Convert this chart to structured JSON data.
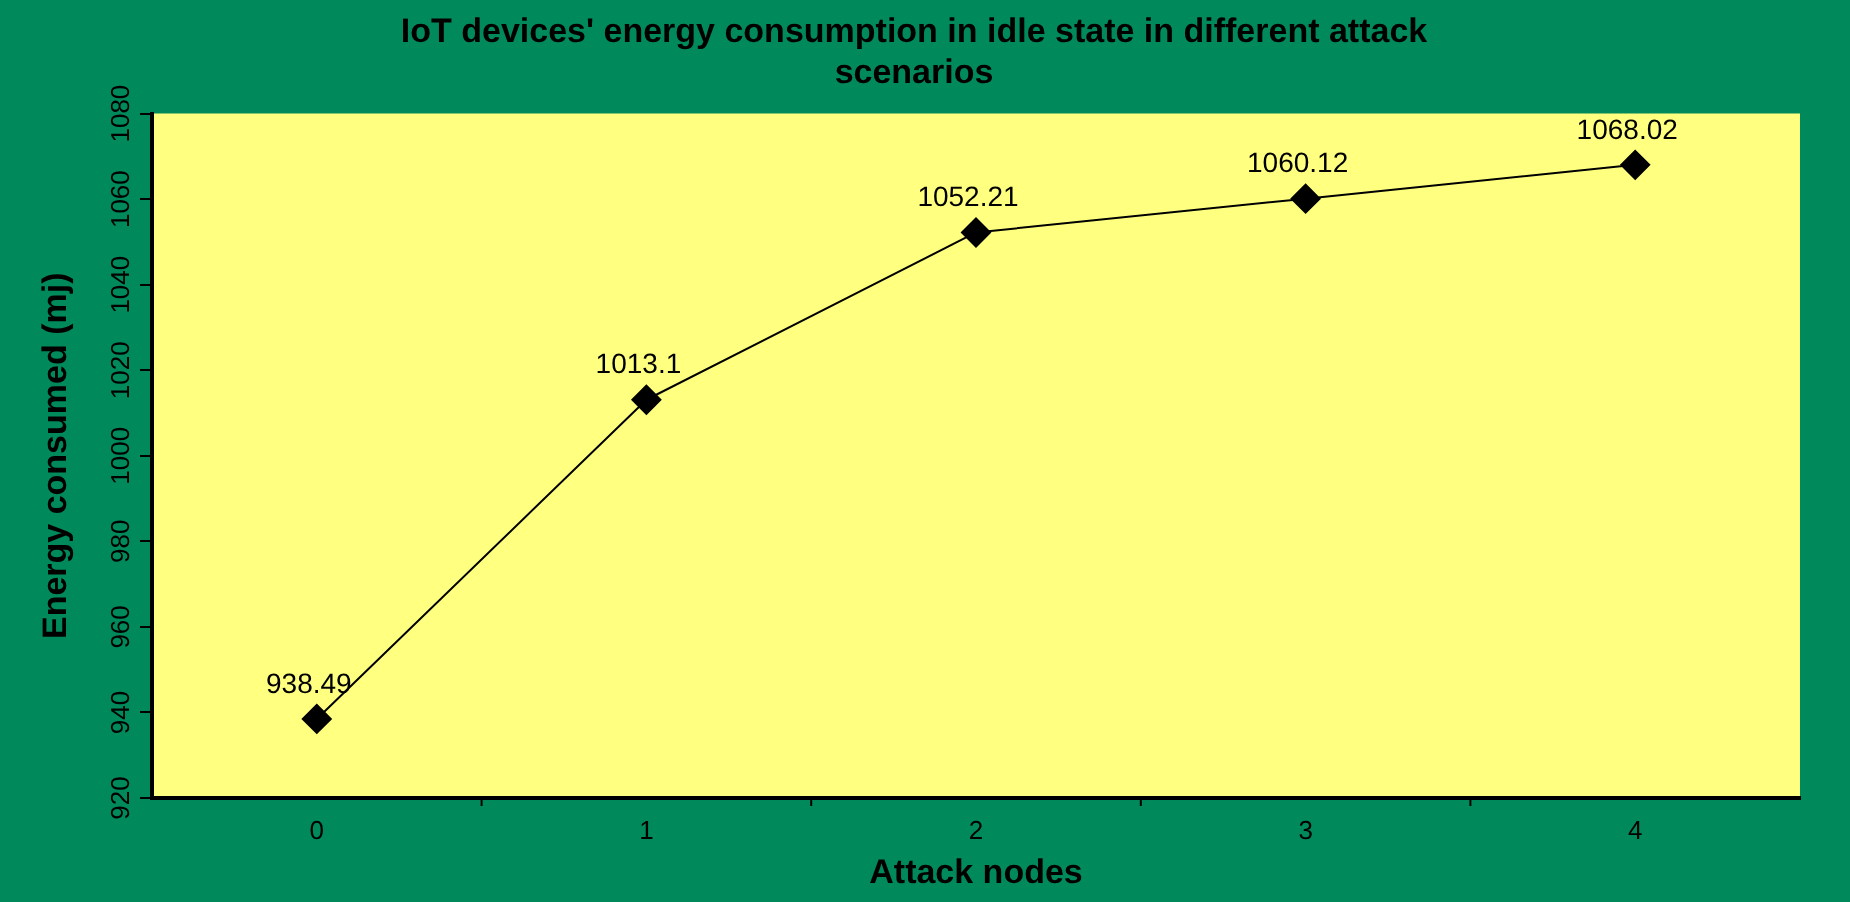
{
  "chart_data": {
    "type": "line",
    "title": "IoT devices' energy consumption in idle state in different attack scenarios",
    "xlabel": "Attack nodes",
    "ylabel": "Energy consumed (mj)",
    "x": [
      0,
      1,
      2,
      3,
      4
    ],
    "series": [
      {
        "color": "#000000",
        "values": [
          938.49,
          1013.1,
          1052.21,
          1060.12,
          1068.02
        ]
      }
    ],
    "xlim": [
      -0.5,
      4.5
    ],
    "xticks": [
      0,
      1,
      2,
      3,
      4
    ],
    "ylim": [
      920,
      1080
    ],
    "yticks": [
      920,
      940,
      960,
      980,
      1000,
      1020,
      1040,
      1060,
      1080
    ],
    "grid": false,
    "legend": false,
    "marker": "diamond",
    "line_style": "solid",
    "data_labels": true
  }
}
